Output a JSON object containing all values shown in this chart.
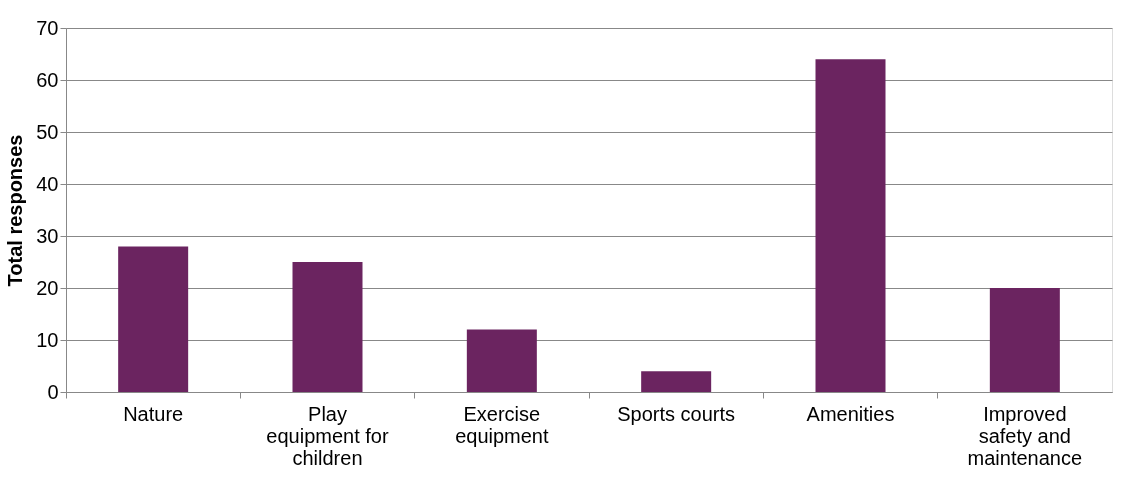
{
  "chart_data": {
    "type": "bar",
    "ylabel": "Total responses",
    "categories": [
      "Nature",
      "Play equipment for children",
      "Exercise equipment",
      "Sports courts",
      "Amenities",
      "Improved safety and maintenance"
    ],
    "values": [
      28,
      25,
      12,
      4,
      64,
      20
    ],
    "color": "#6b2460",
    "ylim": [
      0,
      70
    ],
    "yticks": [
      0,
      10,
      20,
      30,
      40,
      50,
      60,
      70
    ],
    "grid": "y"
  }
}
